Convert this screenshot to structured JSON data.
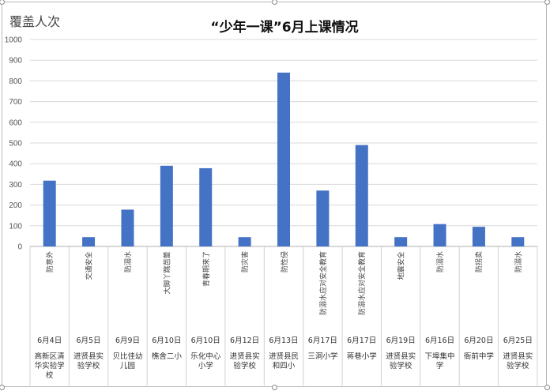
{
  "chart_data": {
    "type": "bar",
    "title": "“少年一课”6月上课情况",
    "ylabel": "覆盖人次",
    "ylim": [
      0,
      1000
    ],
    "yticks": [
      0,
      100,
      200,
      300,
      400,
      500,
      600,
      700,
      800,
      900,
      1000
    ],
    "grid": true,
    "bar_color": "#4472C4",
    "categories": [
      {
        "topic": "防意外",
        "date": "6月4日",
        "school": "高新区清华实验学校"
      },
      {
        "topic": "交通安全",
        "date": "6月5日",
        "school": "进贤县实验学校"
      },
      {
        "topic": "防溺水",
        "date": "6月9日",
        "school": "贝比佳幼儿园"
      },
      {
        "topic": "大脚丫跳芭蕾",
        "date": "6月10日",
        "school": "樵舍二小"
      },
      {
        "topic": "青春期来了",
        "date": "6月10日",
        "school": "乐化中心小学"
      },
      {
        "topic": "防灾害",
        "date": "6月12日",
        "school": "进贤县实验学校"
      },
      {
        "topic": "防性侵",
        "date": "6月13日",
        "school": "进贤县民和四小"
      },
      {
        "topic": "防溺水应对安全教育",
        "date": "6月17日",
        "school": "三洞小学"
      },
      {
        "topic": "防溺水应对安全教育",
        "date": "6月17日",
        "school": "蒋巷小学"
      },
      {
        "topic": "地震安全",
        "date": "6月19日",
        "school": "进贤县实验学校"
      },
      {
        "topic": "防溺水",
        "date": "6月16日",
        "school": "下埠集中学"
      },
      {
        "topic": "防拐卖",
        "date": "6月20日",
        "school": "衙前中学"
      },
      {
        "topic": "防溺水",
        "date": "6月25日",
        "school": "进贤县实验学校"
      }
    ],
    "values": [
      318,
      45,
      178,
      390,
      378,
      45,
      840,
      270,
      490,
      45,
      108,
      95,
      45
    ]
  }
}
